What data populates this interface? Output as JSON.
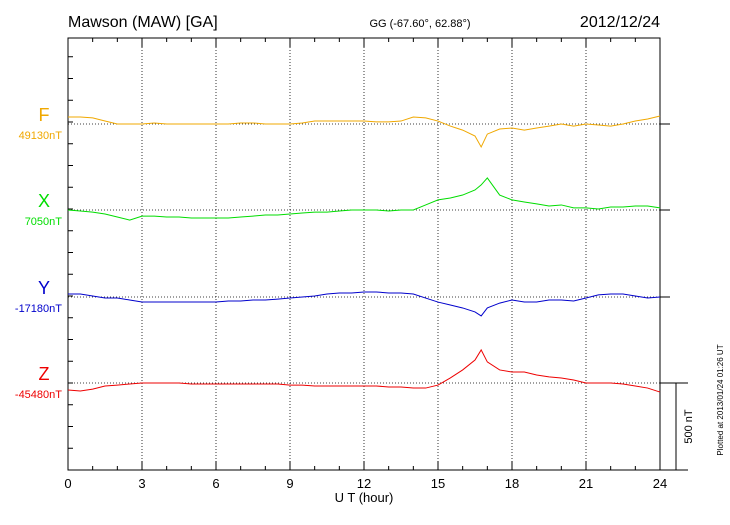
{
  "chart_data": {
    "type": "stacked-traces",
    "title": "Mawson (MAW)  [GA]",
    "subtitle": "GG (-67.60°,  62.88°)",
    "date": "2012/12/24",
    "note": "Plotted at 2013/01/24 01:26 UT",
    "xlabel": "U T (hour)",
    "xlim": [
      0,
      24
    ],
    "xticks": [
      0,
      3,
      6,
      9,
      12,
      15,
      18,
      21,
      24
    ],
    "grid": true,
    "scale_bar": {
      "value": 500,
      "label": "500 nT"
    },
    "x": [
      0,
      0.5,
      1,
      1.5,
      2,
      2.5,
      3,
      3.5,
      4,
      4.5,
      5,
      5.5,
      6,
      6.5,
      7,
      7.5,
      8,
      8.5,
      9,
      9.5,
      10,
      10.5,
      11,
      11.5,
      12,
      12.5,
      13,
      13.5,
      14,
      14.5,
      15,
      15.5,
      16,
      16.5,
      16.75,
      17,
      17.5,
      18,
      18.5,
      19,
      19.5,
      20,
      20.5,
      21,
      21.5,
      22,
      22.5,
      23,
      23.5,
      24
    ],
    "series": [
      {
        "name": "F",
        "color": "#f0a800",
        "baseline": {
          "value": 49130,
          "label": "49130nT"
        },
        "values": [
          49170,
          49170,
          49165,
          49147,
          49130,
          49130,
          49130,
          49136,
          49130,
          49130,
          49130,
          49130,
          49130,
          49130,
          49136,
          49136,
          49130,
          49130,
          49130,
          49136,
          49147,
          49147,
          49147,
          49147,
          49147,
          49142,
          49142,
          49147,
          49170,
          49165,
          49147,
          49118,
          49095,
          49061,
          48998,
          49072,
          49101,
          49107,
          49095,
          49107,
          49118,
          49130,
          49118,
          49130,
          49124,
          49118,
          49130,
          49147,
          49159,
          49176
        ]
      },
      {
        "name": "X",
        "color": "#00dd00",
        "baseline": {
          "value": 7050,
          "label": "7050nT"
        },
        "values": [
          7050,
          7044,
          7038,
          7027,
          7010,
          6992,
          7015,
          7015,
          7010,
          7010,
          7004,
          7004,
          7004,
          7004,
          7010,
          7015,
          7021,
          7021,
          7027,
          7033,
          7038,
          7038,
          7044,
          7050,
          7050,
          7050,
          7044,
          7050,
          7050,
          7079,
          7108,
          7119,
          7136,
          7165,
          7194,
          7234,
          7136,
          7108,
          7096,
          7085,
          7073,
          7079,
          7062,
          7062,
          7056,
          7067,
          7067,
          7073,
          7073,
          7062
        ]
      },
      {
        "name": "Y",
        "color": "#0000cc",
        "baseline": {
          "value": -17180,
          "label": "-17180nT"
        },
        "values": [
          -17163,
          -17163,
          -17174,
          -17186,
          -17186,
          -17197,
          -17209,
          -17209,
          -17209,
          -17209,
          -17209,
          -17209,
          -17209,
          -17203,
          -17203,
          -17197,
          -17197,
          -17192,
          -17186,
          -17180,
          -17174,
          -17163,
          -17157,
          -17157,
          -17151,
          -17151,
          -17157,
          -17157,
          -17163,
          -17186,
          -17209,
          -17226,
          -17243,
          -17266,
          -17289,
          -17243,
          -17215,
          -17197,
          -17209,
          -17209,
          -17197,
          -17197,
          -17203,
          -17186,
          -17168,
          -17163,
          -17163,
          -17174,
          -17186,
          -17180
        ]
      },
      {
        "name": "Z",
        "color": "#ee0000",
        "baseline": {
          "value": -45480,
          "label": "-45480nT"
        },
        "values": [
          -45520,
          -45526,
          -45515,
          -45497,
          -45492,
          -45486,
          -45480,
          -45480,
          -45480,
          -45480,
          -45486,
          -45486,
          -45486,
          -45486,
          -45486,
          -45486,
          -45486,
          -45486,
          -45492,
          -45492,
          -45497,
          -45497,
          -45497,
          -45497,
          -45497,
          -45497,
          -45503,
          -45503,
          -45509,
          -45509,
          -45492,
          -45451,
          -45405,
          -45348,
          -45290,
          -45359,
          -45405,
          -45417,
          -45417,
          -45434,
          -45445,
          -45451,
          -45463,
          -45480,
          -45480,
          -45480,
          -45486,
          -45497,
          -45509,
          -45532
        ]
      }
    ]
  }
}
